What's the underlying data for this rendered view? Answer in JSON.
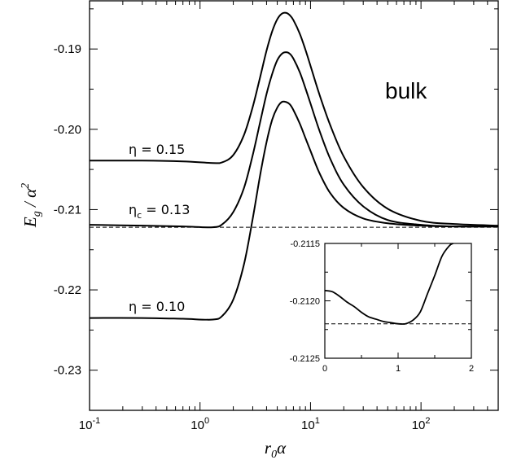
{
  "chart_data": [
    {
      "type": "line",
      "panel": "main",
      "xlabel_main": "r",
      "xlabel_sub": "0",
      "xlabel_tail": "α",
      "ylabel_main": "E",
      "ylabel_sub": "g",
      "ylabel_tail": " / α",
      "ylabel_sup": "2",
      "x_scale": "log",
      "xlim": [
        0.1,
        500
      ],
      "ylim": [
        -0.235,
        -0.184
      ],
      "x_ticks": [
        {
          "base": "10",
          "exp": "-1",
          "value": 0.1
        },
        {
          "base": "10",
          "exp": "0",
          "value": 1
        },
        {
          "base": "10",
          "exp": "1",
          "value": 10
        },
        {
          "base": "10",
          "exp": "2",
          "value": 100
        }
      ],
      "y_ticks": [
        {
          "label": "-0.19",
          "value": -0.19
        },
        {
          "label": "-0.20",
          "value": -0.2
        },
        {
          "label": "-0.21",
          "value": -0.21
        },
        {
          "label": "-0.22",
          "value": -0.22
        },
        {
          "label": "-0.23",
          "value": -0.23
        }
      ],
      "annotation": "bulk",
      "series": [
        {
          "name": "η = 0.15",
          "label_main": "η = 0.15",
          "x": [
            0.1,
            0.3,
            0.7,
            1.3,
            1.6,
            2.0,
            2.5,
            3.0,
            3.5,
            4.0,
            4.5,
            5.0,
            5.5,
            6.0,
            6.5,
            7.0,
            8.0,
            9.0,
            10,
            12,
            15,
            20,
            30,
            50,
            100,
            200,
            500
          ],
          "y": [
            -0.2039,
            -0.2039,
            -0.204,
            -0.2042,
            -0.2041,
            -0.2032,
            -0.2007,
            -0.1972,
            -0.1935,
            -0.1902,
            -0.1878,
            -0.1863,
            -0.1856,
            -0.1855,
            -0.1858,
            -0.1864,
            -0.1881,
            -0.1901,
            -0.1921,
            -0.1956,
            -0.1994,
            -0.2034,
            -0.2072,
            -0.2099,
            -0.2114,
            -0.2118,
            -0.212
          ]
        },
        {
          "name": "ηc = 0.13",
          "label_main": "η",
          "label_sub": "c",
          "label_tail": " = 0.13",
          "x": [
            0.1,
            0.3,
            0.7,
            1.3,
            1.6,
            2.0,
            2.5,
            3.0,
            3.5,
            4.0,
            4.5,
            5.0,
            5.5,
            6.0,
            6.5,
            7.0,
            8.0,
            9.0,
            10,
            12,
            15,
            20,
            30,
            50,
            100,
            200,
            500
          ],
          "y": [
            -0.2119,
            -0.212,
            -0.2121,
            -0.2122,
            -0.2118,
            -0.2103,
            -0.2073,
            -0.2032,
            -0.1991,
            -0.1956,
            -0.1931,
            -0.1914,
            -0.1906,
            -0.1904,
            -0.1906,
            -0.1912,
            -0.1929,
            -0.1949,
            -0.1968,
            -0.2001,
            -0.2036,
            -0.2069,
            -0.2096,
            -0.2113,
            -0.2119,
            -0.2121,
            -0.2121
          ]
        },
        {
          "name": "η = 0.10",
          "label_main": "η = 0.10",
          "x": [
            0.1,
            0.3,
            0.7,
            1.3,
            1.6,
            2.0,
            2.5,
            3.0,
            3.5,
            4.0,
            4.5,
            5.0,
            5.5,
            6.0,
            6.5,
            7.0,
            8.0,
            9.0,
            10,
            12,
            15,
            20,
            30,
            50,
            100,
            200,
            500
          ],
          "y": [
            -0.2235,
            -0.2235,
            -0.2236,
            -0.2237,
            -0.2232,
            -0.2212,
            -0.2168,
            -0.2111,
            -0.2057,
            -0.2016,
            -0.1988,
            -0.1973,
            -0.1966,
            -0.1966,
            -0.1969,
            -0.1976,
            -0.1993,
            -0.2011,
            -0.2027,
            -0.2054,
            -0.2079,
            -0.2098,
            -0.2111,
            -0.2117,
            -0.212,
            -0.2121,
            -0.2121
          ]
        }
      ],
      "reference_line": {
        "style": "dashed",
        "y": -0.2122
      }
    },
    {
      "type": "line",
      "panel": "inset",
      "x_scale": "linear",
      "xlim": [
        0,
        2
      ],
      "ylim": [
        -0.2125,
        -0.2115
      ],
      "x_ticks": [
        {
          "label": "0",
          "value": 0
        },
        {
          "label": "1",
          "value": 1
        },
        {
          "label": "2",
          "value": 2
        }
      ],
      "y_ticks": [
        {
          "label": "-0.2115",
          "value": -0.2115
        },
        {
          "label": "-0.2120",
          "value": -0.212
        },
        {
          "label": "-0.2125",
          "value": -0.2125
        }
      ],
      "series": [
        {
          "x": [
            0,
            0.1,
            0.2,
            0.3,
            0.4,
            0.5,
            0.6,
            0.7,
            0.8,
            0.9,
            1.0,
            1.1,
            1.2,
            1.3,
            1.4,
            1.5,
            1.6,
            1.7,
            1.75
          ],
          "y": [
            -0.21191,
            -0.21192,
            -0.21196,
            -0.21201,
            -0.21205,
            -0.2121,
            -0.21214,
            -0.21216,
            -0.21218,
            -0.21219,
            -0.2122,
            -0.2122,
            -0.21217,
            -0.2121,
            -0.21194,
            -0.21178,
            -0.21161,
            -0.21152,
            -0.2115
          ]
        }
      ],
      "reference_line": {
        "style": "dashed",
        "y": -0.2122
      }
    }
  ]
}
